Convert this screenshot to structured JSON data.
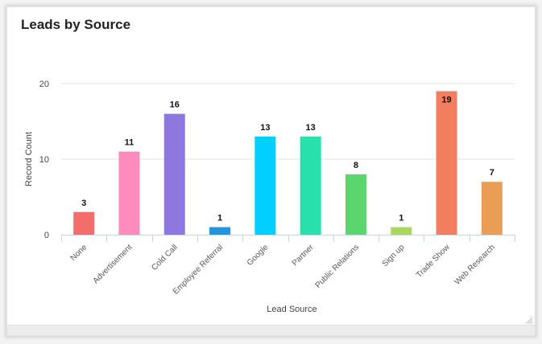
{
  "card": {
    "title": "Leads by Source"
  },
  "chart_data": {
    "type": "bar",
    "title": "Leads by Source",
    "xlabel": "Lead Source",
    "ylabel": "Record Count",
    "ylim": [
      0,
      20
    ],
    "yticks": [
      0,
      10,
      20
    ],
    "grid": true,
    "legend": "none",
    "categories": [
      "None",
      "Advertisement",
      "Cold Call",
      "Employee Referral",
      "Google",
      "Partner",
      "Public Relations",
      "Sign up",
      "Trade Show",
      "Web Research"
    ],
    "values": [
      3,
      11,
      16,
      1,
      13,
      13,
      8,
      1,
      19,
      7
    ],
    "colors": [
      "#f36e6b",
      "#fd8bbd",
      "#8e78e0",
      "#2196dd",
      "#00cfff",
      "#29e0ac",
      "#5bd66e",
      "#abd85a",
      "#f27e60",
      "#eb9d55"
    ]
  }
}
